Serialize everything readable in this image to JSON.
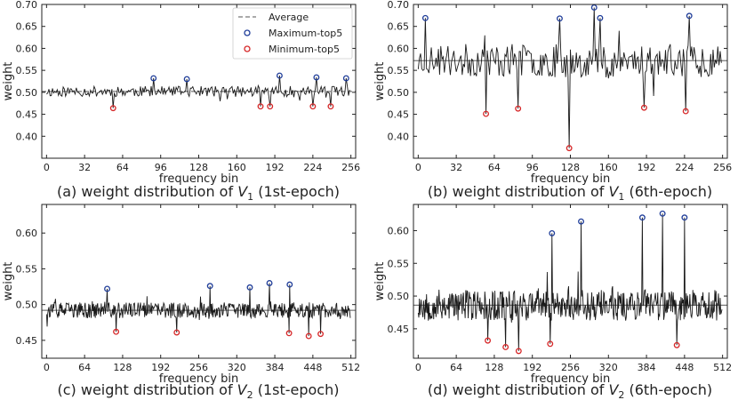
{
  "figure": {
    "legend": {
      "average": "Average",
      "max": "Maximum-top5",
      "min": "Minimum-top5"
    },
    "colors": {
      "line": "#1a1a1a",
      "average": "#777777",
      "max": "#1f3d99",
      "min": "#d62728"
    }
  },
  "chart_data": [
    {
      "type": "line",
      "id": "a",
      "caption": "(a) weight distribution of V1 (1st-epoch)",
      "caption_parts": {
        "pre": "(a) weight distribution of ",
        "var": "V",
        "sub": "1",
        "post": " (1st-epoch)"
      },
      "xlabel": "frequency bin",
      "ylabel": "weight",
      "xlim": [
        -4,
        260
      ],
      "ylim": [
        0.35,
        0.7
      ],
      "xticks": [
        0,
        32,
        64,
        96,
        128,
        160,
        192,
        224,
        256
      ],
      "yticks": [
        0.4,
        0.45,
        0.5,
        0.55,
        0.6,
        0.65,
        0.7
      ],
      "ytick_labels": [
        "0.40",
        "0.45",
        "0.50",
        "0.55",
        "0.60",
        "0.65",
        "0.70"
      ],
      "n": 256,
      "average": 0.502,
      "amplitude": 0.012,
      "seed": 11,
      "maxima": [
        [
          90,
          0.532
        ],
        [
          118,
          0.53
        ],
        [
          196,
          0.538
        ],
        [
          227,
          0.534
        ],
        [
          252,
          0.532
        ]
      ],
      "minima": [
        [
          56,
          0.464
        ],
        [
          180,
          0.468
        ],
        [
          188,
          0.468
        ],
        [
          224,
          0.468
        ],
        [
          239,
          0.468
        ]
      ],
      "legend": true
    },
    {
      "type": "line",
      "id": "b",
      "caption": "(b) weight distribution of V1 (6th-epoch)",
      "caption_parts": {
        "pre": "(b) weight distribution of ",
        "var": "V",
        "sub": "1",
        "post": " (6th-epoch)"
      },
      "xlabel": "frequency bin",
      "ylabel": "weight",
      "xlim": [
        -4,
        260
      ],
      "ylim": [
        0.35,
        0.7
      ],
      "xticks": [
        0,
        32,
        64,
        96,
        128,
        160,
        192,
        224,
        256
      ],
      "yticks": [
        0.4,
        0.45,
        0.5,
        0.55,
        0.6,
        0.65,
        0.7
      ],
      "ytick_labels": [
        "0.40",
        "0.45",
        "0.50",
        "0.55",
        "0.60",
        "0.65",
        "0.70"
      ],
      "n": 256,
      "average": 0.572,
      "amplitude": 0.038,
      "seed": 23,
      "maxima": [
        [
          6,
          0.669
        ],
        [
          119,
          0.668
        ],
        [
          148,
          0.693
        ],
        [
          153,
          0.669
        ],
        [
          228,
          0.674
        ]
      ],
      "minima": [
        [
          57,
          0.451
        ],
        [
          84,
          0.463
        ],
        [
          127,
          0.373
        ],
        [
          190,
          0.465
        ],
        [
          225,
          0.457
        ]
      ],
      "legend": false
    },
    {
      "type": "line",
      "id": "c",
      "caption": "(c) weight distribution of V2 (1st-epoch)",
      "caption_parts": {
        "pre": "(c) weight distribution of ",
        "var": "V",
        "sub": "2",
        "post": " (1st-epoch)"
      },
      "xlabel": "frequency bin",
      "ylabel": "weight",
      "xlim": [
        -8,
        520
      ],
      "ylim": [
        0.425,
        0.64
      ],
      "xticks": [
        0,
        64,
        128,
        192,
        256,
        320,
        384,
        448,
        512
      ],
      "yticks": [
        0.45,
        0.5,
        0.55,
        0.6
      ],
      "ytick_labels": [
        "0.45",
        "0.50",
        "0.55",
        "0.60"
      ],
      "n": 512,
      "average": 0.492,
      "amplitude": 0.011,
      "seed": 37,
      "maxima": [
        [
          102,
          0.522
        ],
        [
          275,
          0.526
        ],
        [
          342,
          0.524
        ],
        [
          375,
          0.53
        ],
        [
          409,
          0.528
        ]
      ],
      "minima": [
        [
          117,
          0.462
        ],
        [
          219,
          0.461
        ],
        [
          408,
          0.46
        ],
        [
          441,
          0.456
        ],
        [
          461,
          0.459
        ]
      ],
      "legend": false
    },
    {
      "type": "line",
      "id": "d",
      "caption": "(d) weight distribution of V2 (6th-epoch)",
      "caption_parts": {
        "pre": "(d) weight distribution of ",
        "var": "V",
        "sub": "2",
        "post": " (6th-epoch)"
      },
      "xlabel": "frequency bin",
      "ylabel": "weight",
      "xlim": [
        -8,
        520
      ],
      "ylim": [
        0.405,
        0.64
      ],
      "xticks": [
        0,
        64,
        128,
        192,
        256,
        320,
        384,
        448,
        512
      ],
      "yticks": [
        0.45,
        0.5,
        0.55,
        0.6
      ],
      "ytick_labels": [
        "0.45",
        "0.50",
        "0.55",
        "0.60"
      ],
      "n": 512,
      "average": 0.486,
      "amplitude": 0.024,
      "seed": 53,
      "maxima": [
        [
          225,
          0.596
        ],
        [
          274,
          0.614
        ],
        [
          377,
          0.62
        ],
        [
          411,
          0.626
        ],
        [
          448,
          0.62
        ]
      ],
      "minima": [
        [
          117,
          0.432
        ],
        [
          147,
          0.422
        ],
        [
          169,
          0.416
        ],
        [
          222,
          0.427
        ],
        [
          435,
          0.425
        ]
      ],
      "legend": false
    }
  ]
}
